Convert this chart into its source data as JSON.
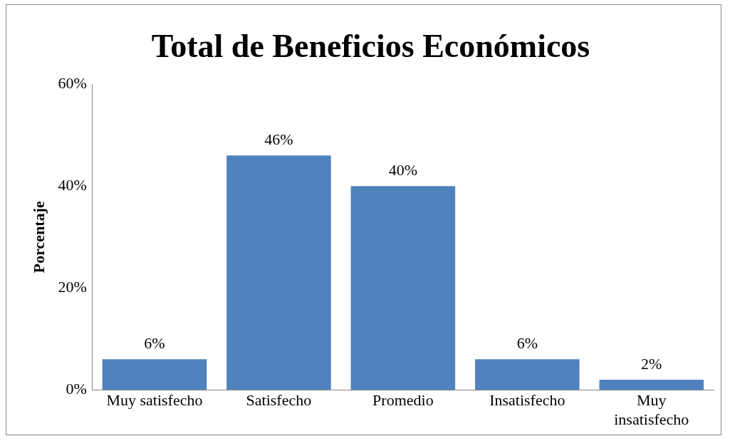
{
  "chart_data": {
    "type": "bar",
    "title": "Total de Beneficios Económicos",
    "ylabel": "Porcentaje",
    "categories": [
      "Muy satisfecho",
      "Satisfecho",
      "Promedio",
      "Insatisfecho",
      "Muy insatisfecho"
    ],
    "values": [
      6,
      46,
      40,
      6,
      2
    ],
    "value_labels": [
      "6%",
      "46%",
      "40%",
      "6%",
      "2%"
    ],
    "color": "#4f81bd",
    "ylim": [
      0,
      60
    ],
    "yticks": [
      {
        "value": 0,
        "label": "0%"
      },
      {
        "value": 20,
        "label": "20%"
      },
      {
        "value": 40,
        "label": "40%"
      },
      {
        "value": 60,
        "label": "60%"
      }
    ],
    "grid": false,
    "legend": false
  }
}
